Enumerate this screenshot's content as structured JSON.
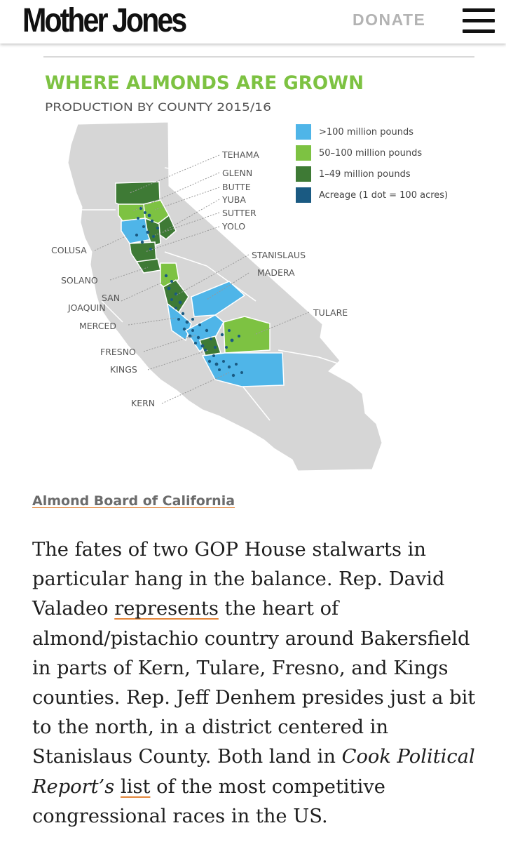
{
  "header": {
    "logo": "Mother Jones",
    "donate_label": "DONATE",
    "menu_icon": "hamburger-menu-icon"
  },
  "figure": {
    "title": "WHERE ALMONDS ARE GROWN",
    "subtitle": "PRODUCTION BY COUNTY 2015/16",
    "legend": [
      {
        "label": ">100 million pounds",
        "color": "#4fb5e8"
      },
      {
        "label": "50–100 million pounds",
        "color": "#7dc242"
      },
      {
        "label": "1–49 million pounds",
        "color": "#3e7a35"
      },
      {
        "label": "Acreage (1 dot = 100 acres)",
        "color": "#1a5a82"
      }
    ],
    "counties": {
      "tehama": "TEHAMA",
      "glenn": "GLENN",
      "butte": "BUTTE",
      "yuba": "YUBA",
      "sutter": "SUTTER",
      "yolo": "YOLO",
      "colusa": "COLUSA",
      "stanislaus": "STANISLAUS",
      "madera": "MADERA",
      "solano": "SOLANO",
      "san_joaquin_1": "SAN",
      "san_joaquin_2": "JOAQUIN",
      "tulare": "TULARE",
      "merced": "MERCED",
      "fresno": "FRESNO",
      "kings": "KINGS",
      "kern": "KERN"
    },
    "credit": "Almond Board of California"
  },
  "article": {
    "s1": "The fates of two GOP House stalwarts in particular hang in the balance. Rep. David Valadeo ",
    "link1": "represents",
    "s2": " the heart of almond/pistachio country around Bakersfield in parts of Kern, Tulare, Fresno, and Kings counties. Rep. Jeff Denhem presides just a bit to the north, in a district centered in Stanislaus County. Both land in ",
    "pub": "Cook Political Report’s",
    "s3": " ",
    "link2": "list",
    "s4": " of the most competitive congressional races in the US."
  }
}
